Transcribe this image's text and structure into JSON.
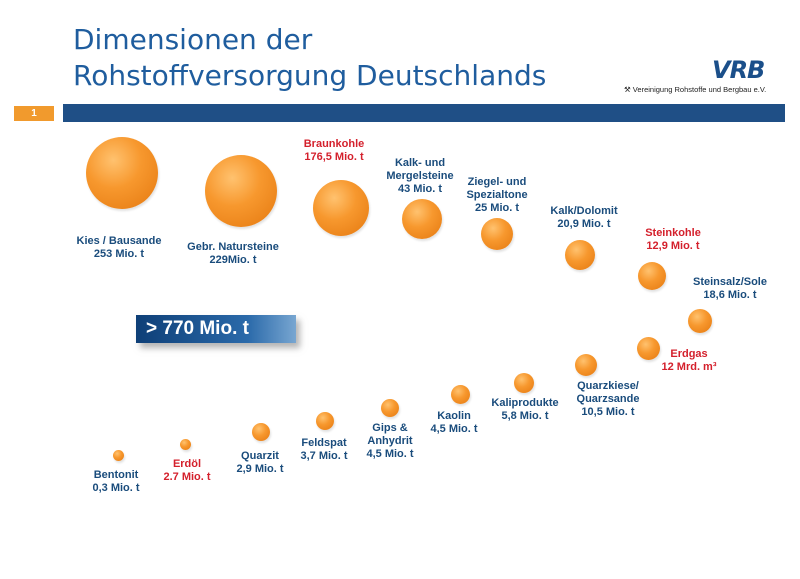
{
  "title": {
    "line1": "Dimensionen der",
    "line2": "Rohstoffversorgung Deutschlands"
  },
  "logo": {
    "text": "VRB",
    "subtitle": "⚒ Vereinigung Rohstoffe und Bergbau e.V."
  },
  "slide_number": "1",
  "total_label": "> 770 Mio. t",
  "colors": {
    "title_blue": "#1f5d9e",
    "band_blue": "#1f4f86",
    "label_blue": "#1a4c7c",
    "label_red": "#d4202c",
    "ball_orange": "#f7982e",
    "slide_no_orange": "#f19a2d"
  },
  "items": [
    {
      "name": "Kies / Bausande",
      "value": "253 Mio. t",
      "highlight": false
    },
    {
      "name": "Gebr. Natursteine",
      "value": "229Mio. t",
      "highlight": false
    },
    {
      "name": "Braunkohle",
      "value": "176,5 Mio. t",
      "highlight": true
    },
    {
      "name_line1": "Kalk- und",
      "name_line2": "Mergelsteine",
      "value": "43 Mio. t",
      "highlight": false
    },
    {
      "name_line1": "Ziegel- und",
      "name_line2": "Spezialtone",
      "value": "25 Mio. t",
      "highlight": false
    },
    {
      "name": "Kalk/Dolomit",
      "value": "20,9 Mio. t",
      "highlight": false
    },
    {
      "name": "Steinkohle",
      "value": "12,9 Mio. t",
      "highlight": true
    },
    {
      "name": "Steinsalz/Sole",
      "value": "18,6 Mio. t",
      "highlight": false
    },
    {
      "name": "Erdgas",
      "value": "12 Mrd. m³",
      "highlight": true
    },
    {
      "name_line1": "Quarzkiese/",
      "name_line2": "Quarzsande",
      "value": "10,5 Mio. t",
      "highlight": false
    },
    {
      "name": "Kaliprodukte",
      "value": "5,8 Mio. t",
      "highlight": false
    },
    {
      "name": "Kaolin",
      "value": "4,5 Mio. t",
      "highlight": false
    },
    {
      "name_line1": "Gips &",
      "name_line2": "Anhydrit",
      "value": "4,5 Mio. t",
      "highlight": false
    },
    {
      "name": "Feldspat",
      "value": "3,7 Mio. t",
      "highlight": false
    },
    {
      "name": "Quarzit",
      "value": "2,9 Mio. t",
      "highlight": false
    },
    {
      "name": "Erdöl",
      "value": "2.7 Mio. t",
      "highlight": true
    },
    {
      "name": "Bentonit",
      "value": "0,3 Mio. t",
      "highlight": false
    }
  ]
}
